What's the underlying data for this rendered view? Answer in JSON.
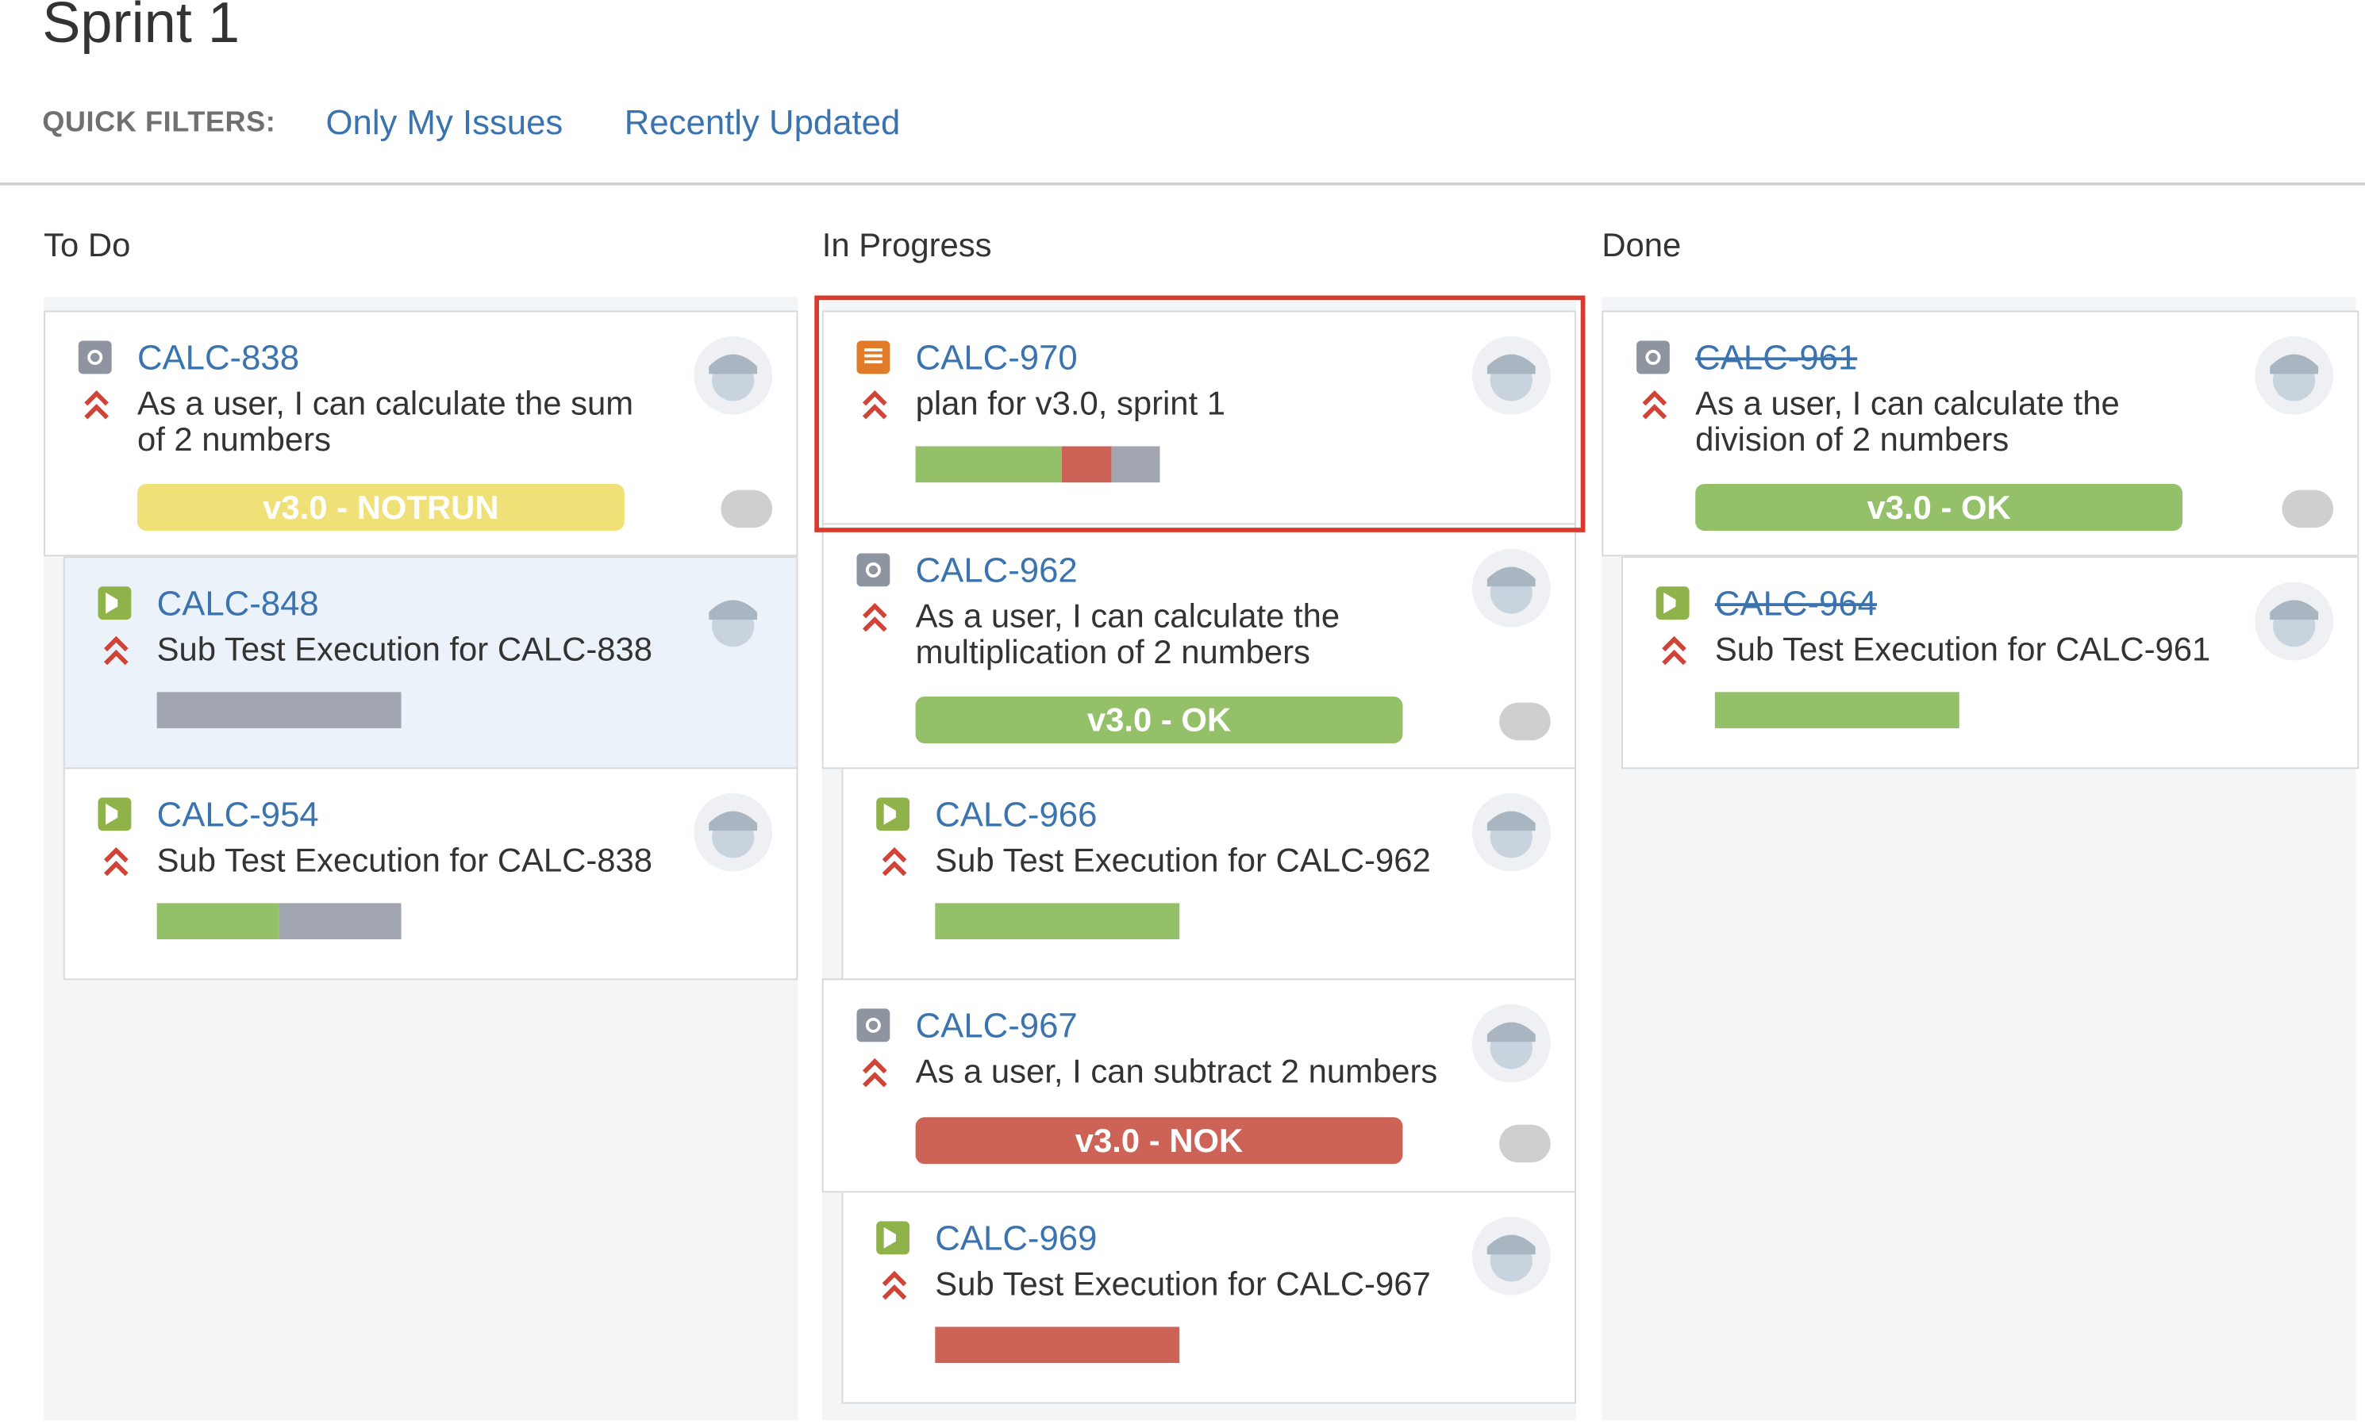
{
  "board": {
    "title": "Sprint 1",
    "quick_filters_label": "QUICK FILTERS:",
    "quick_filters": [
      "Only My Issues",
      "Recently Updated"
    ]
  },
  "columns": {
    "todo": "To Do",
    "in_progress": "In Progress",
    "done": "Done"
  },
  "issues": {
    "calc838": {
      "key": "CALC-838",
      "summary_line1": "As a user, I can calculate the sum",
      "summary_line2": "of 2 numbers",
      "badge": "v3.0 - NOTRUN",
      "type": "story-icon"
    },
    "calc848": {
      "key": "CALC-848",
      "summary": "Sub Test Execution for CALC-838",
      "type": "test-execution-icon",
      "progress": {
        "pass": 0,
        "fail": 0,
        "todo": 1
      }
    },
    "calc954": {
      "key": "CALC-954",
      "summary": "Sub Test Execution for CALC-838",
      "type": "test-execution-icon",
      "progress": {
        "pass": 0.5,
        "fail": 0,
        "todo": 0.5
      }
    },
    "calc970": {
      "key": "CALC-970",
      "summary": "plan for v3.0, sprint 1",
      "type": "test-plan-icon",
      "progress": {
        "pass": 0.6,
        "fail": 0.2,
        "todo": 0.2
      }
    },
    "calc962": {
      "key": "CALC-962",
      "summary_line1": "As a user, I can calculate the",
      "summary_line2": "multiplication of 2 numbers",
      "badge": "v3.0 - OK",
      "type": "story-icon"
    },
    "calc966": {
      "key": "CALC-966",
      "summary": "Sub Test Execution for CALC-962",
      "type": "test-execution-icon",
      "progress": {
        "pass": 1,
        "fail": 0,
        "todo": 0
      }
    },
    "calc967": {
      "key": "CALC-967",
      "summary": "As a user, I can subtract 2 numbers",
      "badge": "v3.0 - NOK",
      "type": "story-icon"
    },
    "calc969": {
      "key": "CALC-969",
      "summary": "Sub Test Execution for CALC-967",
      "type": "test-execution-icon",
      "progress": {
        "pass": 0,
        "fail": 1,
        "todo": 0
      }
    },
    "calc961": {
      "key": "CALC-961",
      "summary_line1": "As a user, I can calculate the",
      "summary_line2": "division of 2 numbers",
      "badge": "v3.0 - OK",
      "type": "story-icon"
    },
    "calc964": {
      "key": "CALC-964",
      "summary": "Sub Test Execution for CALC-961",
      "type": "test-execution-icon",
      "progress": {
        "pass": 1,
        "fail": 0,
        "todo": 0
      }
    }
  },
  "colors": {
    "link": "#3b73af",
    "pass": "#94c06a",
    "fail": "#cd6357",
    "todo": "#a1a6b0",
    "notrun": "#efe077",
    "priority": "#d04437",
    "selection": "#d93a2b"
  }
}
